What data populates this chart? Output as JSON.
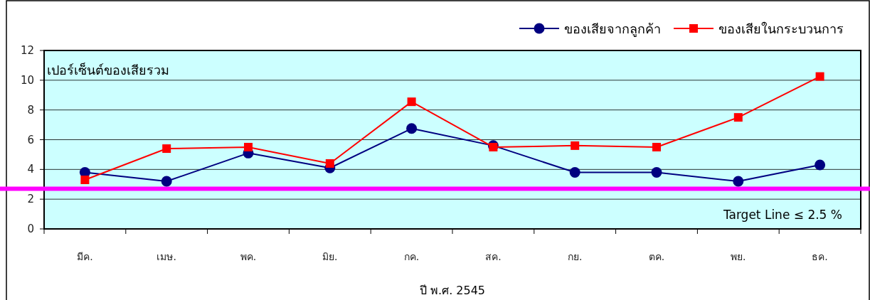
{
  "chart_data": {
    "type": "line",
    "xlabel": "ปี พ.ศ. 2545",
    "ylabel": "เปอร์เซ็นต์ของเสียรวม",
    "categories": [
      "มีค.",
      "เมษ.",
      "พค.",
      "มิย.",
      "กค.",
      "สค.",
      "กย.",
      "ตค.",
      "พย.",
      "ธค."
    ],
    "series": [
      {
        "name": "ของเสียจากลูกค้า",
        "color": "#000080",
        "marker": "circle",
        "values": [
          3.8,
          3.2,
          5.1,
          4.1,
          6.75,
          5.6,
          3.8,
          3.8,
          3.2,
          4.3
        ]
      },
      {
        "name": "ของเสียในกระบวนการ",
        "color": "#ff0000",
        "marker": "square",
        "values": [
          3.3,
          5.4,
          5.5,
          4.4,
          8.55,
          5.5,
          5.6,
          5.5,
          7.5,
          10.25
        ]
      }
    ],
    "ylim": [
      0,
      12
    ],
    "yticks": [
      0,
      2,
      4,
      6,
      8,
      10,
      12
    ],
    "grid": "y",
    "legend": "top right",
    "ref_lines": [
      {
        "axis": "y",
        "value": 2.7,
        "color": "#ff00ff"
      }
    ],
    "annotations": [
      "Target Line ≤ 2.5 %"
    ]
  }
}
